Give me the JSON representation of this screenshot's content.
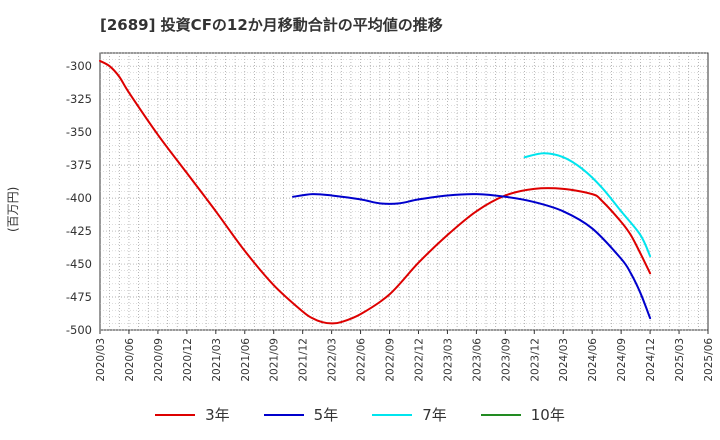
{
  "chart_data": {
    "type": "line",
    "title": "[2689]  投資CFの12か月移動合計の平均値の推移",
    "ylabel": "(百万円)",
    "xlabel": "",
    "ylim": [
      -500,
      -290
    ],
    "yticks": [
      -300,
      -325,
      -350,
      -375,
      -400,
      -425,
      -450,
      -475,
      -500
    ],
    "xticks": [
      "2020/03",
      "2020/06",
      "2020/09",
      "2020/12",
      "2021/03",
      "2021/06",
      "2021/09",
      "2021/12",
      "2022/03",
      "2022/06",
      "2022/09",
      "2022/12",
      "2023/03",
      "2023/06",
      "2023/09",
      "2023/12",
      "2024/03",
      "2024/06",
      "2024/09",
      "2024/12",
      "2025/03",
      "2025/06"
    ],
    "grid": true,
    "legend_position": "bottom",
    "series": [
      {
        "name": "3年",
        "color": "#dd0000",
        "points": [
          [
            "2020/03",
            -296
          ],
          [
            "2020/04",
            -300
          ],
          [
            "2020/05",
            -308
          ],
          [
            "2020/06",
            -320
          ],
          [
            "2020/09",
            -352
          ],
          [
            "2020/12",
            -381
          ],
          [
            "2021/03",
            -410
          ],
          [
            "2021/06",
            -440
          ],
          [
            "2021/09",
            -466
          ],
          [
            "2021/12",
            -486
          ],
          [
            "2022/01",
            -491
          ],
          [
            "2022/02",
            -494
          ],
          [
            "2022/03",
            -495
          ],
          [
            "2022/04",
            -494
          ],
          [
            "2022/06",
            -488
          ],
          [
            "2022/09",
            -473
          ],
          [
            "2022/12",
            -449
          ],
          [
            "2023/03",
            -428
          ],
          [
            "2023/06",
            -410
          ],
          [
            "2023/09",
            -398
          ],
          [
            "2023/12",
            -393
          ],
          [
            "2024/03",
            -393
          ],
          [
            "2024/06",
            -397
          ],
          [
            "2024/07",
            -402
          ],
          [
            "2024/09",
            -418
          ],
          [
            "2024/10",
            -428
          ],
          [
            "2024/11",
            -442
          ],
          [
            "2024/12",
            -457
          ]
        ]
      },
      {
        "name": "5年",
        "color": "#0000cc",
        "points": [
          [
            "2021/11",
            -399
          ],
          [
            "2022/01",
            -397
          ],
          [
            "2022/03",
            -398
          ],
          [
            "2022/06",
            -401
          ],
          [
            "2022/08",
            -404
          ],
          [
            "2022/10",
            -404
          ],
          [
            "2022/12",
            -401
          ],
          [
            "2023/03",
            -398
          ],
          [
            "2023/06",
            -397
          ],
          [
            "2023/09",
            -399
          ],
          [
            "2023/12",
            -403
          ],
          [
            "2024/03",
            -410
          ],
          [
            "2024/06",
            -423
          ],
          [
            "2024/09",
            -446
          ],
          [
            "2024/10",
            -457
          ],
          [
            "2024/11",
            -472
          ],
          [
            "2024/12",
            -491
          ]
        ]
      },
      {
        "name": "7年",
        "color": "#00e5ee",
        "points": [
          [
            "2023/11",
            -369
          ],
          [
            "2024/01",
            -366
          ],
          [
            "2024/03",
            -369
          ],
          [
            "2024/05",
            -378
          ],
          [
            "2024/07",
            -392
          ],
          [
            "2024/09",
            -410
          ],
          [
            "2024/11",
            -428
          ],
          [
            "2024/12",
            -444
          ]
        ]
      },
      {
        "name": "10年",
        "color": "#228b22",
        "points": []
      }
    ]
  }
}
